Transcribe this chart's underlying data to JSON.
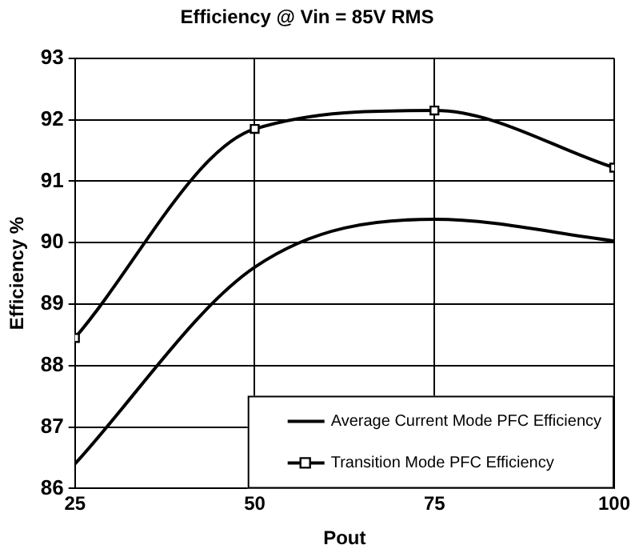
{
  "chart_data": {
    "type": "line",
    "title": "Efficiency @ Vin = 85V RMS",
    "xlabel": "Pout",
    "ylabel": "Efficiency %",
    "x": [
      25,
      50,
      75,
      100
    ],
    "series": [
      {
        "name": "Average Current Mode PFC Efficiency",
        "color": "#000000",
        "marker": "none",
        "values": [
          86.4,
          89.6,
          90.38,
          90.03
        ]
      },
      {
        "name": "Transition Mode PFC Efficiency",
        "color": "#000000",
        "marker": "square",
        "values": [
          88.45,
          91.85,
          92.15,
          91.22
        ]
      }
    ],
    "xlim": [
      25,
      100
    ],
    "xticks": [
      25,
      50,
      75,
      100
    ],
    "ylim": [
      86,
      93
    ],
    "yticks": [
      86,
      87,
      88,
      89,
      90,
      91,
      92,
      93
    ],
    "grid": true,
    "legend": "bottom right",
    "line_style": "solid"
  }
}
